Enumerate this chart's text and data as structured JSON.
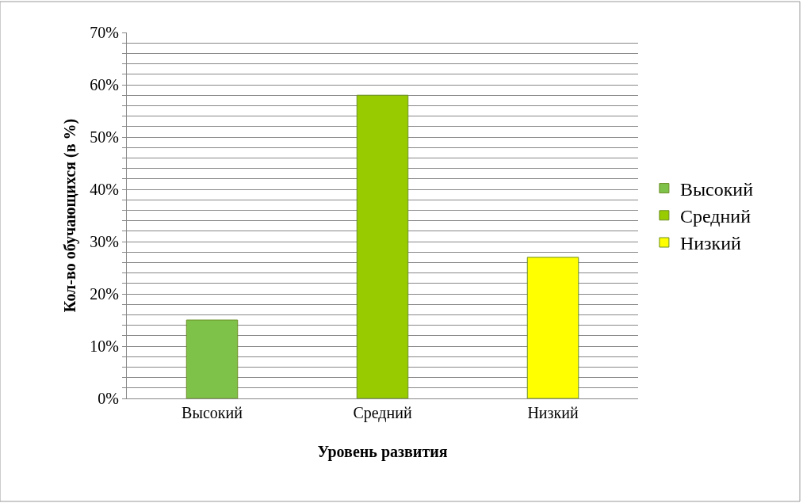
{
  "chart_data": {
    "type": "bar",
    "xlabel": "Уровень развития",
    "ylabel": "Кол-во обучающихся (в %)",
    "categories": [
      "Высокий",
      "Средний",
      "Низкий"
    ],
    "series": [
      {
        "name": "Высокий",
        "color": "#7fc24a",
        "values": [
          15,
          null,
          null
        ]
      },
      {
        "name": "Средний",
        "color": "#99cc00",
        "values": [
          null,
          58,
          null
        ]
      },
      {
        "name": "Низкий",
        "color": "#ffff00",
        "values": [
          null,
          null,
          27
        ]
      }
    ],
    "ylim": [
      0,
      70
    ],
    "yticks": [
      {
        "value": 0,
        "label": "0%"
      },
      {
        "value": 2,
        "label": null
      },
      {
        "value": 4,
        "label": null
      },
      {
        "value": 6,
        "label": null
      },
      {
        "value": 8,
        "label": null
      },
      {
        "value": 10,
        "label": "10%"
      },
      {
        "value": 12,
        "label": null
      },
      {
        "value": 14,
        "label": null
      },
      {
        "value": 16,
        "label": null
      },
      {
        "value": 18,
        "label": null
      },
      {
        "value": 20,
        "label": "20%"
      },
      {
        "value": 22,
        "label": null
      },
      {
        "value": 24,
        "label": null
      },
      {
        "value": 26,
        "label": null
      },
      {
        "value": 28,
        "label": null
      },
      {
        "value": 30,
        "label": "30%"
      },
      {
        "value": 32,
        "label": null
      },
      {
        "value": 34,
        "label": null
      },
      {
        "value": 36,
        "label": null
      },
      {
        "value": 38,
        "label": null
      },
      {
        "value": 40,
        "label": "40%"
      },
      {
        "value": 42,
        "label": null
      },
      {
        "value": 44,
        "label": null
      },
      {
        "value": 46,
        "label": null
      },
      {
        "value": 48,
        "label": null
      },
      {
        "value": 50,
        "label": "50%"
      },
      {
        "value": 52,
        "label": null
      },
      {
        "value": 54,
        "label": null
      },
      {
        "value": 56,
        "label": null
      },
      {
        "value": 58,
        "label": null
      },
      {
        "value": 60,
        "label": "60%"
      },
      {
        "value": 62,
        "label": null
      },
      {
        "value": 64,
        "label": null
      },
      {
        "value": 66,
        "label": null
      },
      {
        "value": 68,
        "label": null
      },
      {
        "value": 70,
        "label": "70%"
      }
    ],
    "grid": "y",
    "legend": "right"
  }
}
